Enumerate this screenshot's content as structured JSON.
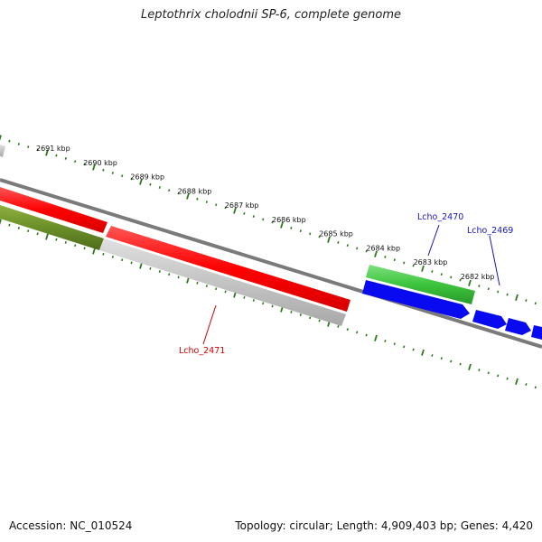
{
  "title": "Leptothrix cholodnii SP-6, complete genome",
  "footer": {
    "accession": "Accession: NC_010524",
    "summary": "Topology: circular; Length: 4,909,403 bp; Genes: 4,420"
  },
  "scale": {
    "tick_labels": [
      "2691 kbp",
      "2690 kbp",
      "2689 kbp",
      "2688 kbp",
      "2687 kbp",
      "2686 kbp",
      "2685 kbp",
      "2684 kbp",
      "2683 kbp",
      "2682 kbp"
    ],
    "tick_color": "#2a7a1a"
  },
  "genes": [
    {
      "name": "Lcho_2471",
      "color": "#cc0000"
    },
    {
      "name": "Lcho_2470",
      "color": "#1515c0"
    },
    {
      "name": "Lcho_2469",
      "color": "#1515c0"
    }
  ],
  "colors": {
    "backbone": "#7a7a7a",
    "forward_gene": "#ff1a1a",
    "reverse_gene": "#c2c2c2",
    "olive_gene": "#6b8f28",
    "green_gene": "#3fc93f",
    "blue_gene": "#0a0af0"
  }
}
